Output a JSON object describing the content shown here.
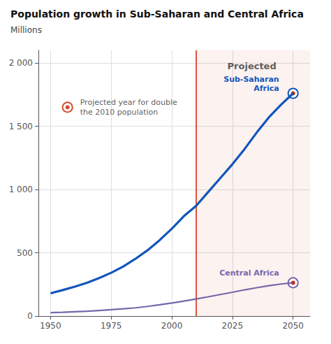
{
  "chart_data": {
    "type": "line",
    "title": "Population growth in Sub-Saharan and Central Africa",
    "subtitle": "Millions",
    "x": [
      1950,
      1955,
      1960,
      1965,
      1970,
      1975,
      1980,
      1985,
      1990,
      1995,
      2000,
      2005,
      2010,
      2015,
      2020,
      2025,
      2030,
      2035,
      2040,
      2045,
      2050
    ],
    "series": [
      {
        "name": "Sub-Saharan\nAfrica",
        "color": "#1155bb",
        "values": [
          180,
          205,
          232,
          263,
          300,
          342,
          392,
          452,
          520,
          600,
          690,
          790,
          870,
          980,
          1090,
          1200,
          1320,
          1450,
          1570,
          1670,
          1760
        ]
      },
      {
        "name": "Central Africa",
        "color": "#7766aa",
        "values": [
          27,
          30,
          34,
          38,
          44,
          50,
          57,
          65,
          76,
          89,
          103,
          118,
          135,
          152,
          170,
          188,
          207,
          224,
          240,
          253,
          263
        ]
      }
    ],
    "xlim": [
      1945,
      2057
    ],
    "ylim": [
      0,
      2100
    ],
    "xticks": [
      1950,
      1975,
      2000,
      2025,
      2050
    ],
    "yticks": [
      0,
      500,
      {
        "value": 1000,
        "label": "1 000"
      },
      {
        "value": 1500,
        "label": "1 500"
      },
      {
        "value": 2000,
        "label": "2 000"
      }
    ],
    "grid": true,
    "vlines": [
      {
        "x": 2010,
        "color": "#cc2200"
      }
    ],
    "annotations": [
      {
        "text": "Projected",
        "x": 2033,
        "y": 2020
      },
      {
        "text": "Projected year for double\nthe 2010 population",
        "x": 1957,
        "y": 1650,
        "marker": "circle"
      }
    ]
  }
}
